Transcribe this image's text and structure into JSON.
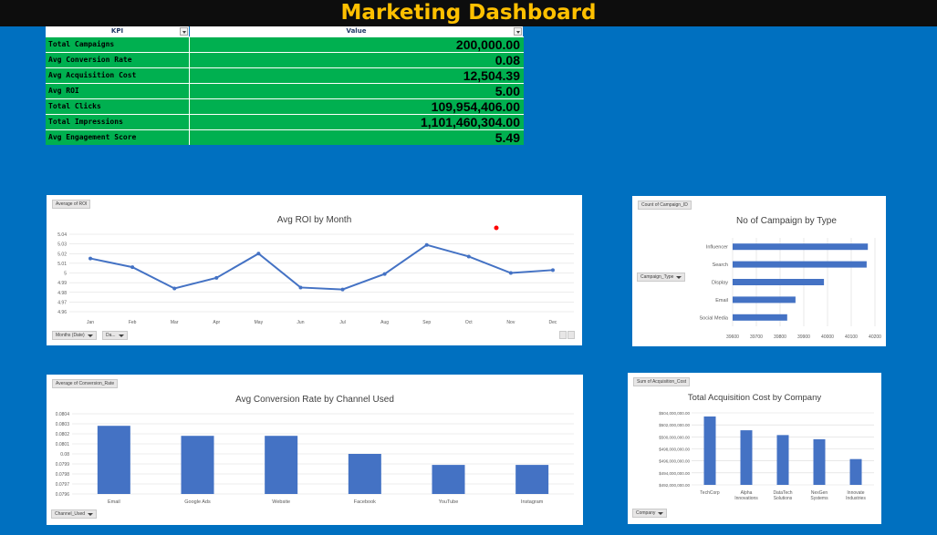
{
  "header": {
    "title": "Marketing Dashboard"
  },
  "kpi_table": {
    "col_kpi": "KPI",
    "col_value": "Value",
    "rows": [
      {
        "kpi": "Total Campaigns",
        "value": "200,000.00"
      },
      {
        "kpi": "Avg Conversion Rate",
        "value": "0.08"
      },
      {
        "kpi": "Avg Acquisition Cost",
        "value": "12,504.39"
      },
      {
        "kpi": "Avg ROI",
        "value": "5.00"
      },
      {
        "kpi": "Total Clicks",
        "value": "109,954,406.00"
      },
      {
        "kpi": "Total Impressions",
        "value": "1,101,460,304.00"
      },
      {
        "kpi": "Avg Engagement Score",
        "value": "5.49"
      }
    ]
  },
  "roi_chart": {
    "field_button": "Average of ROI",
    "filter_months": "Months (Date)",
    "filter_date": "Da...",
    "colors": {
      "line": "#4472c4",
      "marker_red": "#ff0000"
    }
  },
  "campaign_chart": {
    "field_button": "Count of Campaign_ID",
    "filter_type": "Campaign_Type",
    "colors": {
      "bar": "#4472c4"
    }
  },
  "conversion_chart": {
    "field_button": "Average of Conversion_Rate",
    "filter_channel": "Channel_Used",
    "colors": {
      "bar": "#4472c4"
    }
  },
  "acquisition_chart": {
    "field_button": "Sum of Acquisition_Cost",
    "filter_company": "Company",
    "colors": {
      "bar": "#4472c4"
    }
  },
  "chart_data": [
    {
      "type": "line",
      "title": "Avg ROI by Month",
      "categories": [
        "Jan",
        "Feb",
        "Mar",
        "Apr",
        "May",
        "Jun",
        "Jul",
        "Aug",
        "Sep",
        "Oct",
        "Nov",
        "Dec"
      ],
      "values": [
        5.015,
        5.006,
        4.984,
        4.995,
        5.02,
        4.985,
        4.983,
        4.999,
        5.029,
        5.017,
        5.0,
        5.003
      ],
      "y_ticks": [
        "5.04",
        "5.03",
        "5.02",
        "5.01",
        "5",
        "4.99",
        "4.98",
        "4.97",
        "4.96"
      ],
      "ylim": [
        4.96,
        5.04
      ],
      "grid": true
    },
    {
      "type": "bar",
      "orientation": "horizontal",
      "title": "No of Campaign by Type",
      "categories": [
        "Influencer",
        "Search",
        "Display",
        "Email",
        "Social Media"
      ],
      "values": [
        40170,
        40165,
        39985,
        39865,
        39830
      ],
      "x_ticks": [
        "39600",
        "39700",
        "39800",
        "39900",
        "40000",
        "40100",
        "40200"
      ],
      "xlim": [
        39600,
        40200
      ],
      "grid": true
    },
    {
      "type": "bar",
      "title": "Avg Conversion Rate by Channel Used",
      "categories": [
        "Email",
        "Google Ads",
        "Website",
        "Facebook",
        "YouTube",
        "Instagram"
      ],
      "values": [
        0.08028,
        0.08018,
        0.08018,
        0.08,
        0.07989,
        0.07989
      ],
      "y_ticks": [
        "0.0804",
        "0.0803",
        "0.0802",
        "0.0801",
        "0.08",
        "0.0799",
        "0.0798",
        "0.0797",
        "0.0796"
      ],
      "ylim": [
        0.0796,
        0.0804
      ],
      "grid": true
    },
    {
      "type": "bar",
      "title": "Total Acquisition Cost by Company",
      "categories": [
        "TechCorp",
        "Alpha Innovations",
        "DataTech Solutions",
        "NexGen Systems",
        "Innovate Industries"
      ],
      "values": [
        503400000,
        501100000,
        500300000,
        499600000,
        496300000
      ],
      "y_ticks": [
        "$504,000,000.00",
        "$502,000,000.00",
        "$500,000,000.00",
        "$498,000,000.00",
        "$496,000,000.00",
        "$494,000,000.00",
        "$492,000,000.00"
      ],
      "ylim": [
        492000000,
        504000000
      ],
      "grid": true
    }
  ]
}
